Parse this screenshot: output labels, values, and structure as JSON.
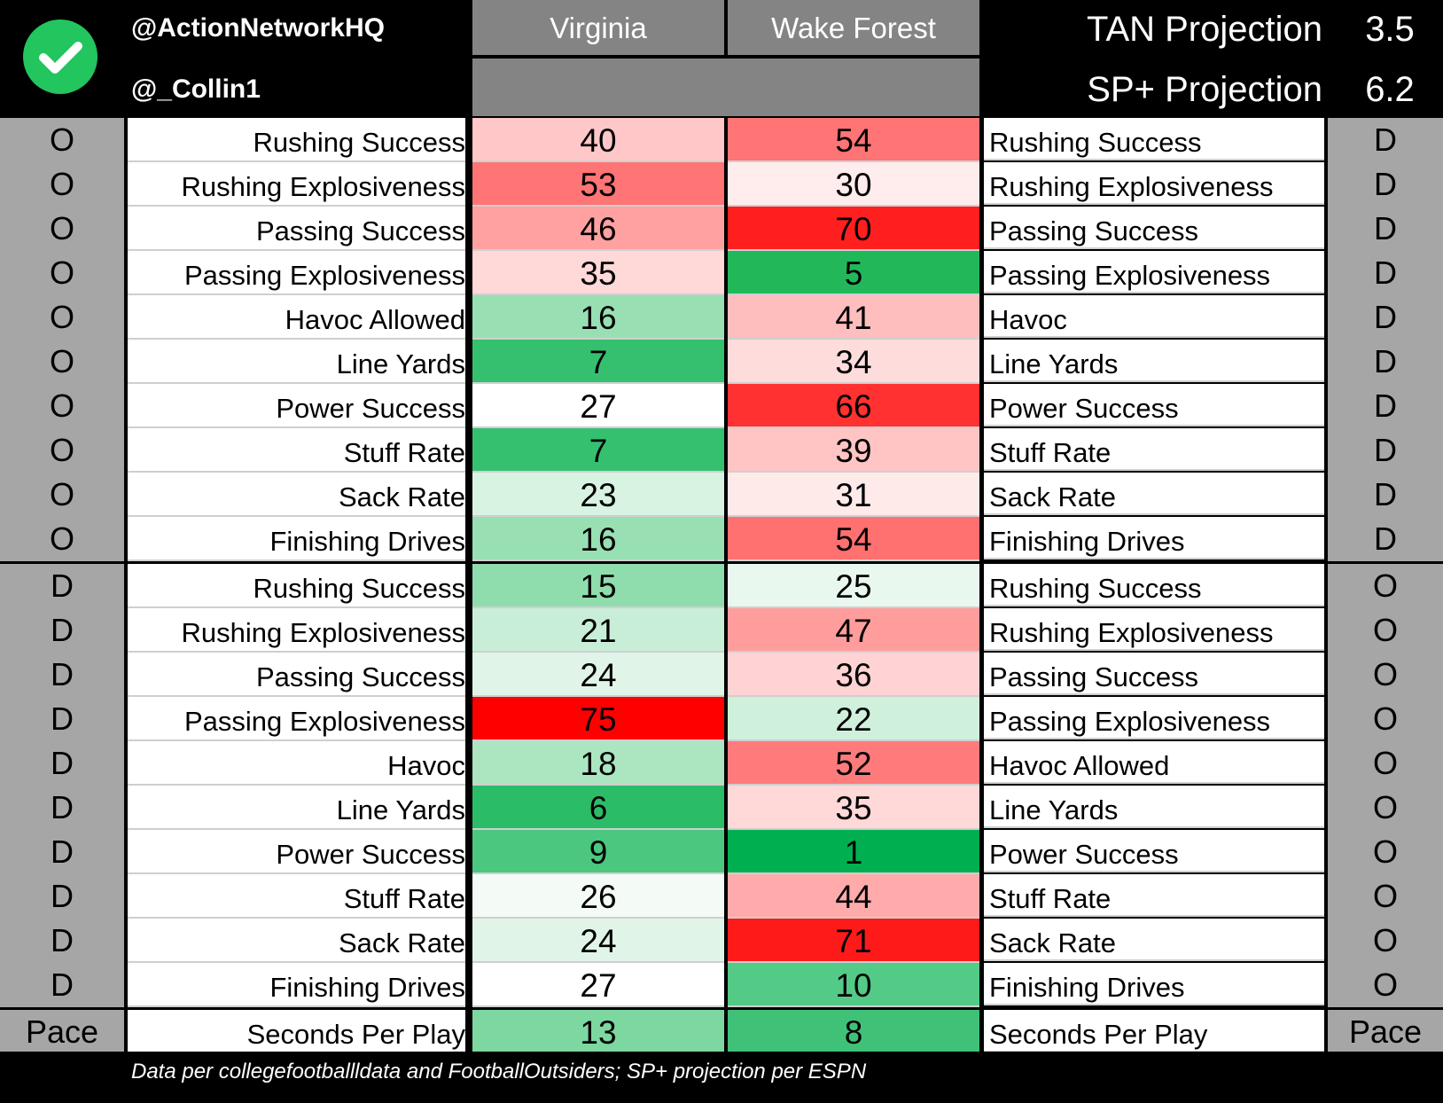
{
  "header": {
    "handle_primary": "@ActionNetworkHQ",
    "handle_secondary": "@_Collin1",
    "team_a": "Virginia",
    "team_b": "Wake Forest",
    "projections": [
      {
        "label": "TAN Projection",
        "value": "3.5"
      },
      {
        "label": "SP+ Projection",
        "value": "6.2"
      }
    ]
  },
  "colors": {
    "header_bg": "#000000",
    "side_bg": "#a6a6a6",
    "team_header_bg": "#848484",
    "logo": "#22c55e"
  },
  "sections": [
    {
      "rows": [
        {
          "side_left": "O",
          "label_left": "Rushing Success",
          "val_a": 40,
          "val_b": 54,
          "label_right": "Rushing Success",
          "side_right": "D",
          "color_a": "#ffc7c7",
          "color_b": "#ff7474"
        },
        {
          "side_left": "O",
          "label_left": "Rushing Explosiveness",
          "val_a": 53,
          "val_b": 30,
          "label_right": "Rushing Explosiveness",
          "side_right": "D",
          "color_a": "#ff7474",
          "color_b": "#ffecec"
        },
        {
          "side_left": "O",
          "label_left": "Passing Success",
          "val_a": 46,
          "val_b": 70,
          "label_right": "Passing Success",
          "side_right": "D",
          "color_a": "#ffa1a1",
          "color_b": "#ff1f1f"
        },
        {
          "side_left": "O",
          "label_left": "Passing Explosiveness",
          "val_a": 35,
          "val_b": 5,
          "label_right": "Passing Explosiveness",
          "side_right": "D",
          "color_a": "#ffd8d8",
          "color_b": "#22b85a"
        },
        {
          "side_left": "O",
          "label_left": "Havoc Allowed",
          "val_a": 16,
          "val_b": 41,
          "label_right": "Havoc",
          "side_right": "D",
          "color_a": "#98e0b3",
          "color_b": "#ffbebe"
        },
        {
          "side_left": "O",
          "label_left": "Line Yards",
          "val_a": 7,
          "val_b": 34,
          "label_right": "Line Yards",
          "side_right": "D",
          "color_a": "#35c070",
          "color_b": "#ffdcdc"
        },
        {
          "side_left": "O",
          "label_left": "Power Success",
          "val_a": 27,
          "val_b": 66,
          "label_right": "Power Success",
          "side_right": "D",
          "color_a": "#ffffff",
          "color_b": "#ff3131"
        },
        {
          "side_left": "O",
          "label_left": "Stuff Rate",
          "val_a": 7,
          "val_b": 39,
          "label_right": "Stuff Rate",
          "side_right": "D",
          "color_a": "#35c070",
          "color_b": "#ffc5c5"
        },
        {
          "side_left": "O",
          "label_left": "Sack Rate",
          "val_a": 23,
          "val_b": 31,
          "label_right": "Sack Rate",
          "side_right": "D",
          "color_a": "#d8f3e2",
          "color_b": "#ffeaea"
        },
        {
          "side_left": "O",
          "label_left": "Finishing Drives",
          "val_a": 16,
          "val_b": 54,
          "label_right": "Finishing Drives",
          "side_right": "D",
          "color_a": "#98e0b3",
          "color_b": "#ff7070"
        }
      ]
    },
    {
      "rows": [
        {
          "side_left": "D",
          "label_left": "Rushing Success",
          "val_a": 15,
          "val_b": 25,
          "label_right": "Rushing Success",
          "side_right": "O",
          "color_a": "#8fddad",
          "color_b": "#e9f8ee"
        },
        {
          "side_left": "D",
          "label_left": "Rushing Explosiveness",
          "val_a": 21,
          "val_b": 47,
          "label_right": "Rushing Explosiveness",
          "side_right": "O",
          "color_a": "#c9eed7",
          "color_b": "#ff9d9d"
        },
        {
          "side_left": "D",
          "label_left": "Passing Success",
          "val_a": 24,
          "val_b": 36,
          "label_right": "Passing Success",
          "side_right": "O",
          "color_a": "#e0f5e8",
          "color_b": "#ffd3d3"
        },
        {
          "side_left": "D",
          "label_left": "Passing Explosiveness",
          "val_a": 75,
          "val_b": 22,
          "label_right": "Passing Explosiveness",
          "side_right": "O",
          "color_a": "#ff0000",
          "color_b": "#cff0db"
        },
        {
          "side_left": "D",
          "label_left": "Havoc",
          "val_a": 18,
          "val_b": 52,
          "label_right": "Havoc Allowed",
          "side_right": "O",
          "color_a": "#abe6c1",
          "color_b": "#ff7b7b"
        },
        {
          "side_left": "D",
          "label_left": "Line Yards",
          "val_a": 6,
          "val_b": 35,
          "label_right": "Line Yards",
          "side_right": "O",
          "color_a": "#2bbc67",
          "color_b": "#ffd8d8"
        },
        {
          "side_left": "D",
          "label_left": "Power Success",
          "val_a": 9,
          "val_b": 1,
          "label_right": "Power Success",
          "side_right": "O",
          "color_a": "#4cc77f",
          "color_b": "#00b050"
        },
        {
          "side_left": "D",
          "label_left": "Stuff Rate",
          "val_a": 26,
          "val_b": 44,
          "label_right": "Stuff Rate",
          "side_right": "O",
          "color_a": "#f4fbf7",
          "color_b": "#ffabab"
        },
        {
          "side_left": "D",
          "label_left": "Sack Rate",
          "val_a": 24,
          "val_b": 71,
          "label_right": "Sack Rate",
          "side_right": "O",
          "color_a": "#e0f5e8",
          "color_b": "#ff1a1a"
        },
        {
          "side_left": "D",
          "label_left": "Finishing Drives",
          "val_a": 27,
          "val_b": 10,
          "label_right": "Finishing Drives",
          "side_right": "O",
          "color_a": "#ffffff",
          "color_b": "#53ca86"
        }
      ]
    },
    {
      "rows": [
        {
          "side_left": "Pace",
          "label_left": "Seconds Per Play",
          "val_a": 13,
          "val_b": 8,
          "label_right": "Seconds Per Play",
          "side_right": "Pace",
          "color_a": "#7dd7a0",
          "color_b": "#3fc278"
        }
      ]
    }
  ],
  "footer": {
    "note": "Data per collegefootballldata and FootballOutsiders; SP+ projection per ESPN"
  }
}
